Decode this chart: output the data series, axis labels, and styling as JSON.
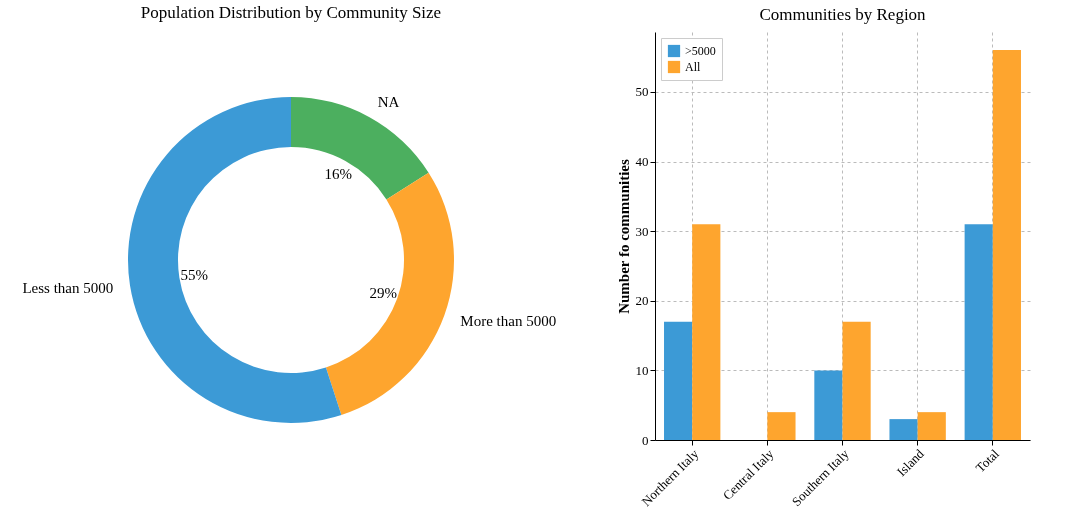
{
  "chart_data": [
    {
      "type": "donut",
      "title": "Population Distribution by Community Size",
      "categories": [
        "NA",
        "More than 5000",
        "Less than 5000"
      ],
      "values": [
        16,
        29,
        55
      ],
      "colors": [
        "#4caf5f",
        "#fea52e",
        "#3c9ad6"
      ],
      "value_labels": [
        "16%",
        "29%",
        "55%"
      ]
    },
    {
      "type": "bar",
      "title": "Communities by Region",
      "ylabel": "Number fo communities",
      "categories": [
        "Northern Italy",
        "Central Italy",
        "Southern Italy",
        "Island",
        "Total"
      ],
      "series": [
        {
          "name": ">5000",
          "color": "#3c9ad6",
          "values": [
            17,
            0,
            10,
            3,
            31
          ]
        },
        {
          "name": "All",
          "color": "#fea52e",
          "values": [
            31,
            4,
            17,
            4,
            56
          ]
        }
      ],
      "ylim": [
        0,
        58.6
      ],
      "yticks": [
        0,
        10,
        20,
        30,
        40,
        50
      ],
      "grid": true,
      "legend": "top left"
    }
  ]
}
